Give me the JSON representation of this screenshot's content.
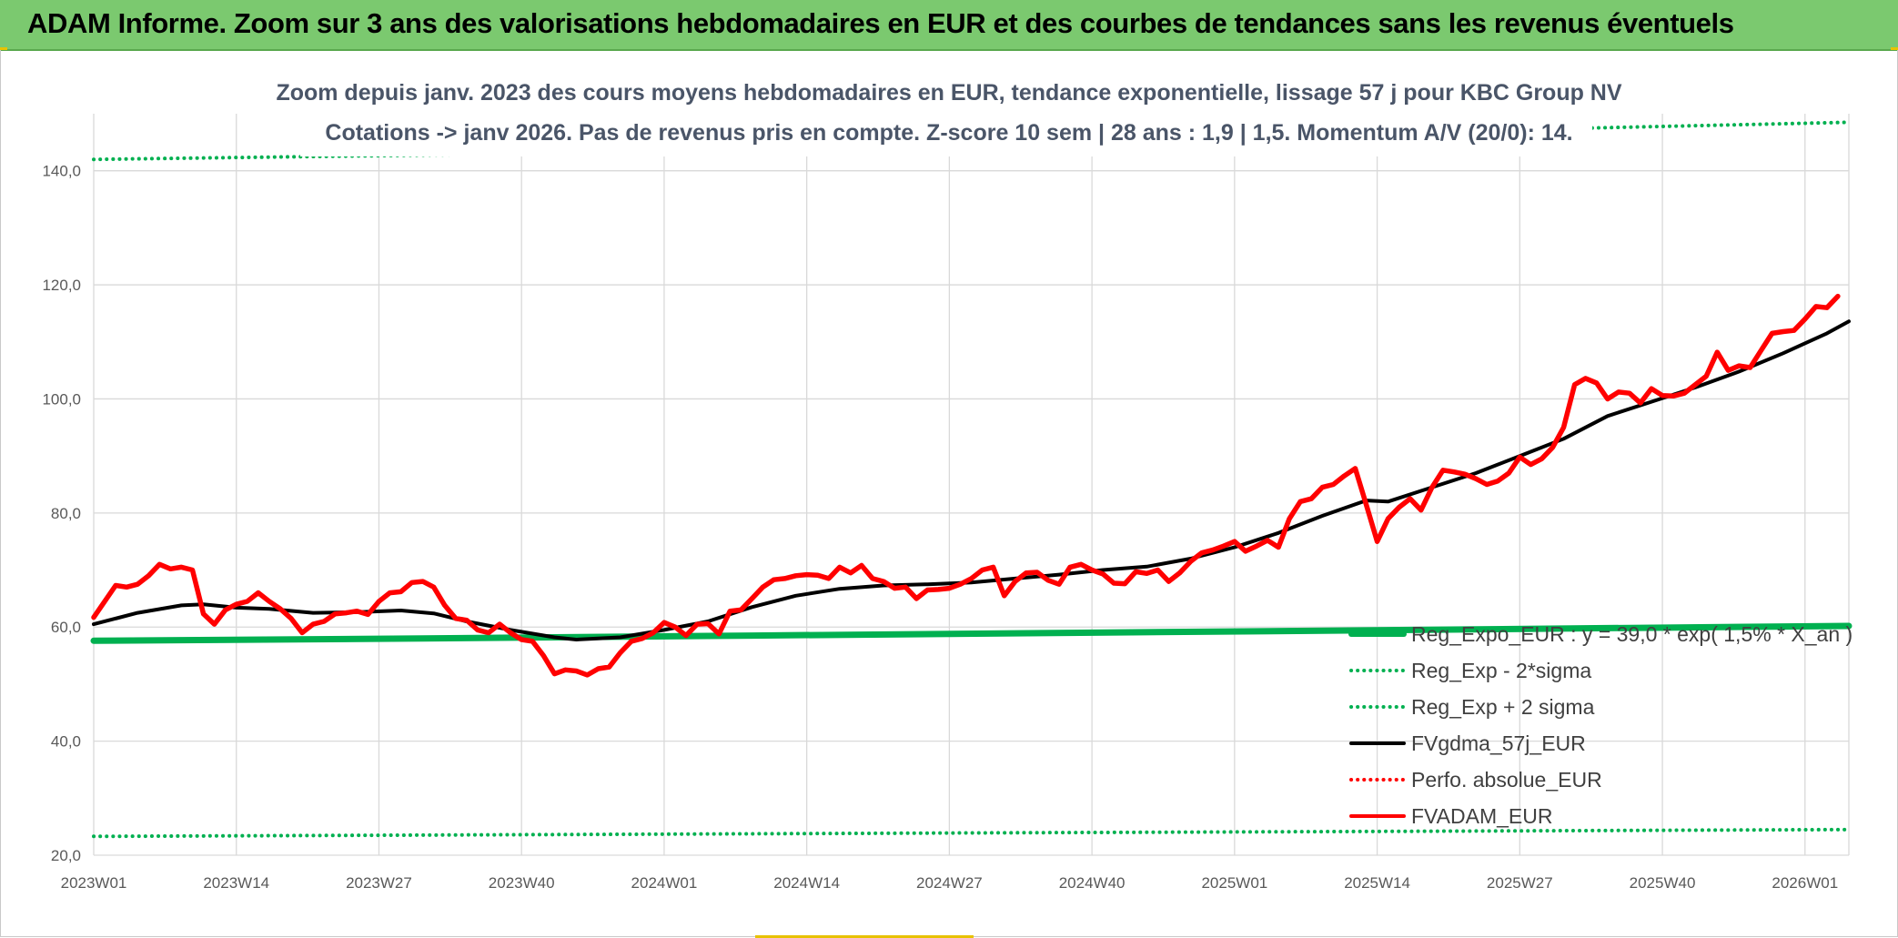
{
  "header": {
    "title": "ADAM Informe. Zoom sur 3 ans des valorisations hebdomadaires en EUR et des courbes de tendances sans les revenus éventuels"
  },
  "chart_data": {
    "type": "line",
    "title": "Zoom depuis janv. 2023 des cours moyens hebdomadaires en EUR, tendance exponentielle, lissage 57 j pour KBC Group NV",
    "subtitle": "Cotations -> janv 2026. Pas de revenus pris en compte. Z-score 10 sem | 28 ans : 1,9 | 1,5. Momentum A/V (20/0): 14.",
    "xlabel": "",
    "ylabel": "",
    "ylim": [
      20,
      150
    ],
    "y_ticks": [
      "140,0",
      "120,0",
      "100,0",
      "80,0",
      "60,0",
      "40,0",
      "20,0"
    ],
    "x_ticks": [
      "2023W01",
      "2023W14",
      "2023W27",
      "2023W40",
      "2024W01",
      "2024W14",
      "2024W27",
      "2024W40",
      "2025W01",
      "2025W14",
      "2025W27",
      "2025W40",
      "2026W01"
    ],
    "x_range_weeks": [
      0,
      160
    ],
    "grid": true,
    "legend_position": "bottom-right",
    "series": [
      {
        "name": "Reg_Expo_EUR : y = 39,0 * exp( 1,5% * X_an )",
        "style": "solid",
        "color": "#00b050",
        "points": [
          [
            0,
            57.6
          ],
          [
            30,
            58.0
          ],
          [
            60,
            58.5
          ],
          [
            90,
            59.0
          ],
          [
            120,
            59.5
          ],
          [
            160,
            60.2
          ]
        ]
      },
      {
        "name": "Reg_Exp - 2*sigma",
        "style": "dotted",
        "color": "#00b050",
        "points": [
          [
            0,
            23.3
          ],
          [
            40,
            23.6
          ],
          [
            80,
            23.9
          ],
          [
            120,
            24.2
          ],
          [
            160,
            24.5
          ]
        ]
      },
      {
        "name": "Reg_Exp + 2 sigma",
        "style": "dotted",
        "color": "#00b050",
        "points": [
          [
            0,
            142.0
          ],
          [
            40,
            143.0
          ],
          [
            80,
            145.0
          ],
          [
            120,
            146.8
          ],
          [
            160,
            148.5
          ]
        ]
      },
      {
        "name": "FVgdma_57j_EUR",
        "style": "solid",
        "color": "#000000",
        "points": [
          [
            0,
            60.5
          ],
          [
            4,
            62.5
          ],
          [
            8,
            63.8
          ],
          [
            10,
            64.0
          ],
          [
            13,
            63.4
          ],
          [
            16,
            63.2
          ],
          [
            20,
            62.5
          ],
          [
            24,
            62.6
          ],
          [
            28,
            62.9
          ],
          [
            31,
            62.4
          ],
          [
            34,
            61.0
          ],
          [
            38,
            59.5
          ],
          [
            42,
            58.2
          ],
          [
            44,
            57.8
          ],
          [
            48,
            58.2
          ],
          [
            52,
            59.5
          ],
          [
            56,
            61.0
          ],
          [
            60,
            63.5
          ],
          [
            64,
            65.5
          ],
          [
            68,
            66.7
          ],
          [
            72,
            67.3
          ],
          [
            76,
            67.5
          ],
          [
            80,
            67.8
          ],
          [
            84,
            68.5
          ],
          [
            88,
            69.2
          ],
          [
            92,
            70.0
          ],
          [
            96,
            70.6
          ],
          [
            100,
            72.0
          ],
          [
            104,
            74.0
          ],
          [
            108,
            76.5
          ],
          [
            112,
            79.5
          ],
          [
            116,
            82.2
          ],
          [
            118,
            82.0
          ],
          [
            122,
            84.5
          ],
          [
            126,
            87.0
          ],
          [
            130,
            90.0
          ],
          [
            134,
            93.0
          ],
          [
            138,
            97.0
          ],
          [
            142,
            99.5
          ],
          [
            146,
            102.0
          ],
          [
            150,
            104.8
          ],
          [
            154,
            108.0
          ],
          [
            158,
            111.5
          ],
          [
            160,
            113.6
          ]
        ]
      },
      {
        "name": "Perfo. absolue_EUR",
        "style": "dotted",
        "color": "#ff0000",
        "points": []
      },
      {
        "name": "FVADAM_EUR",
        "style": "solid",
        "color": "#ff0000",
        "points": [
          [
            0,
            61.7
          ],
          [
            2,
            67.3
          ],
          [
            3,
            67.0
          ],
          [
            4,
            67.5
          ],
          [
            5,
            69.0
          ],
          [
            6,
            71.0
          ],
          [
            7,
            70.2
          ],
          [
            8,
            70.5
          ],
          [
            9,
            70.0
          ],
          [
            10,
            62.3
          ],
          [
            11,
            60.5
          ],
          [
            12,
            63.0
          ],
          [
            13,
            64.0
          ],
          [
            14,
            64.5
          ],
          [
            15,
            66.0
          ],
          [
            16,
            64.5
          ],
          [
            17,
            63.2
          ],
          [
            18,
            61.5
          ],
          [
            19,
            59.0
          ],
          [
            20,
            60.5
          ],
          [
            21,
            61.0
          ],
          [
            22,
            62.3
          ],
          [
            23,
            62.5
          ],
          [
            24,
            62.8
          ],
          [
            25,
            62.2
          ],
          [
            26,
            64.5
          ],
          [
            27,
            66.0
          ],
          [
            28,
            66.2
          ],
          [
            29,
            67.8
          ],
          [
            30,
            68.0
          ],
          [
            31,
            67.0
          ],
          [
            32,
            63.8
          ],
          [
            33,
            61.5
          ],
          [
            34,
            61.2
          ],
          [
            35,
            59.5
          ],
          [
            36,
            59.0
          ],
          [
            37,
            60.5
          ],
          [
            38,
            59.0
          ],
          [
            39,
            57.8
          ],
          [
            40,
            57.5
          ],
          [
            41,
            55.0
          ],
          [
            42,
            51.8
          ],
          [
            43,
            52.5
          ],
          [
            44,
            52.3
          ],
          [
            45,
            51.6
          ],
          [
            46,
            52.7
          ],
          [
            47,
            53.0
          ],
          [
            48,
            55.5
          ],
          [
            49,
            57.5
          ],
          [
            50,
            58.0
          ],
          [
            51,
            59.0
          ],
          [
            52,
            60.8
          ],
          [
            53,
            60.0
          ],
          [
            54,
            58.5
          ],
          [
            55,
            60.5
          ],
          [
            56,
            60.6
          ],
          [
            57,
            58.8
          ],
          [
            58,
            62.8
          ],
          [
            59,
            63.0
          ],
          [
            60,
            65.0
          ],
          [
            61,
            67.0
          ],
          [
            62,
            68.3
          ],
          [
            63,
            68.5
          ],
          [
            64,
            69.0
          ],
          [
            65,
            69.2
          ],
          [
            66,
            69.1
          ],
          [
            67,
            68.5
          ],
          [
            68,
            70.5
          ],
          [
            69,
            69.5
          ],
          [
            70,
            70.8
          ],
          [
            71,
            68.5
          ],
          [
            72,
            68.0
          ],
          [
            73,
            66.8
          ],
          [
            74,
            67.0
          ],
          [
            75,
            65.0
          ],
          [
            76,
            66.5
          ],
          [
            77,
            66.6
          ],
          [
            78,
            66.8
          ],
          [
            79,
            67.5
          ],
          [
            80,
            68.5
          ],
          [
            81,
            70.0
          ],
          [
            82,
            70.5
          ],
          [
            83,
            65.5
          ],
          [
            84,
            68.0
          ],
          [
            85,
            69.5
          ],
          [
            86,
            69.6
          ],
          [
            87,
            68.2
          ],
          [
            88,
            67.5
          ],
          [
            89,
            70.5
          ],
          [
            90,
            71.0
          ],
          [
            91,
            70.0
          ],
          [
            92,
            69.3
          ],
          [
            93,
            67.7
          ],
          [
            94,
            67.6
          ],
          [
            95,
            69.7
          ],
          [
            96,
            69.4
          ],
          [
            97,
            70.0
          ],
          [
            98,
            68.0
          ],
          [
            99,
            69.5
          ],
          [
            100,
            71.5
          ],
          [
            101,
            73.0
          ],
          [
            102,
            73.5
          ],
          [
            103,
            74.2
          ],
          [
            104,
            75.0
          ],
          [
            105,
            73.3
          ],
          [
            106,
            74.2
          ],
          [
            107,
            75.2
          ],
          [
            108,
            74.0
          ],
          [
            109,
            79.0
          ],
          [
            110,
            82.0
          ],
          [
            111,
            82.5
          ],
          [
            112,
            84.5
          ],
          [
            113,
            85.0
          ],
          [
            114,
            86.5
          ],
          [
            115,
            87.8
          ],
          [
            116,
            81.5
          ],
          [
            117,
            75.0
          ],
          [
            118,
            79.0
          ],
          [
            119,
            81.0
          ],
          [
            120,
            82.5
          ],
          [
            121,
            80.5
          ],
          [
            122,
            84.5
          ],
          [
            123,
            87.5
          ],
          [
            124,
            87.2
          ],
          [
            125,
            86.8
          ],
          [
            126,
            86.0
          ],
          [
            127,
            85.0
          ],
          [
            128,
            85.6
          ],
          [
            129,
            87.0
          ],
          [
            130,
            89.8
          ],
          [
            131,
            88.5
          ],
          [
            132,
            89.5
          ],
          [
            133,
            91.5
          ],
          [
            134,
            95.0
          ],
          [
            135,
            102.5
          ],
          [
            136,
            103.6
          ],
          [
            137,
            102.8
          ],
          [
            138,
            100.0
          ],
          [
            139,
            101.2
          ],
          [
            140,
            101.0
          ],
          [
            141,
            99.3
          ],
          [
            142,
            101.8
          ],
          [
            143,
            100.6
          ],
          [
            144,
            100.5
          ],
          [
            145,
            101.0
          ],
          [
            146,
            102.5
          ],
          [
            147,
            104.0
          ],
          [
            148,
            108.2
          ],
          [
            149,
            105.0
          ],
          [
            150,
            105.8
          ],
          [
            151,
            105.5
          ],
          [
            152,
            108.5
          ],
          [
            153,
            111.5
          ],
          [
            154,
            111.8
          ],
          [
            155,
            112.0
          ],
          [
            156,
            114.0
          ],
          [
            157,
            116.2
          ],
          [
            158,
            116.0
          ],
          [
            159,
            118.0
          ]
        ]
      }
    ]
  }
}
